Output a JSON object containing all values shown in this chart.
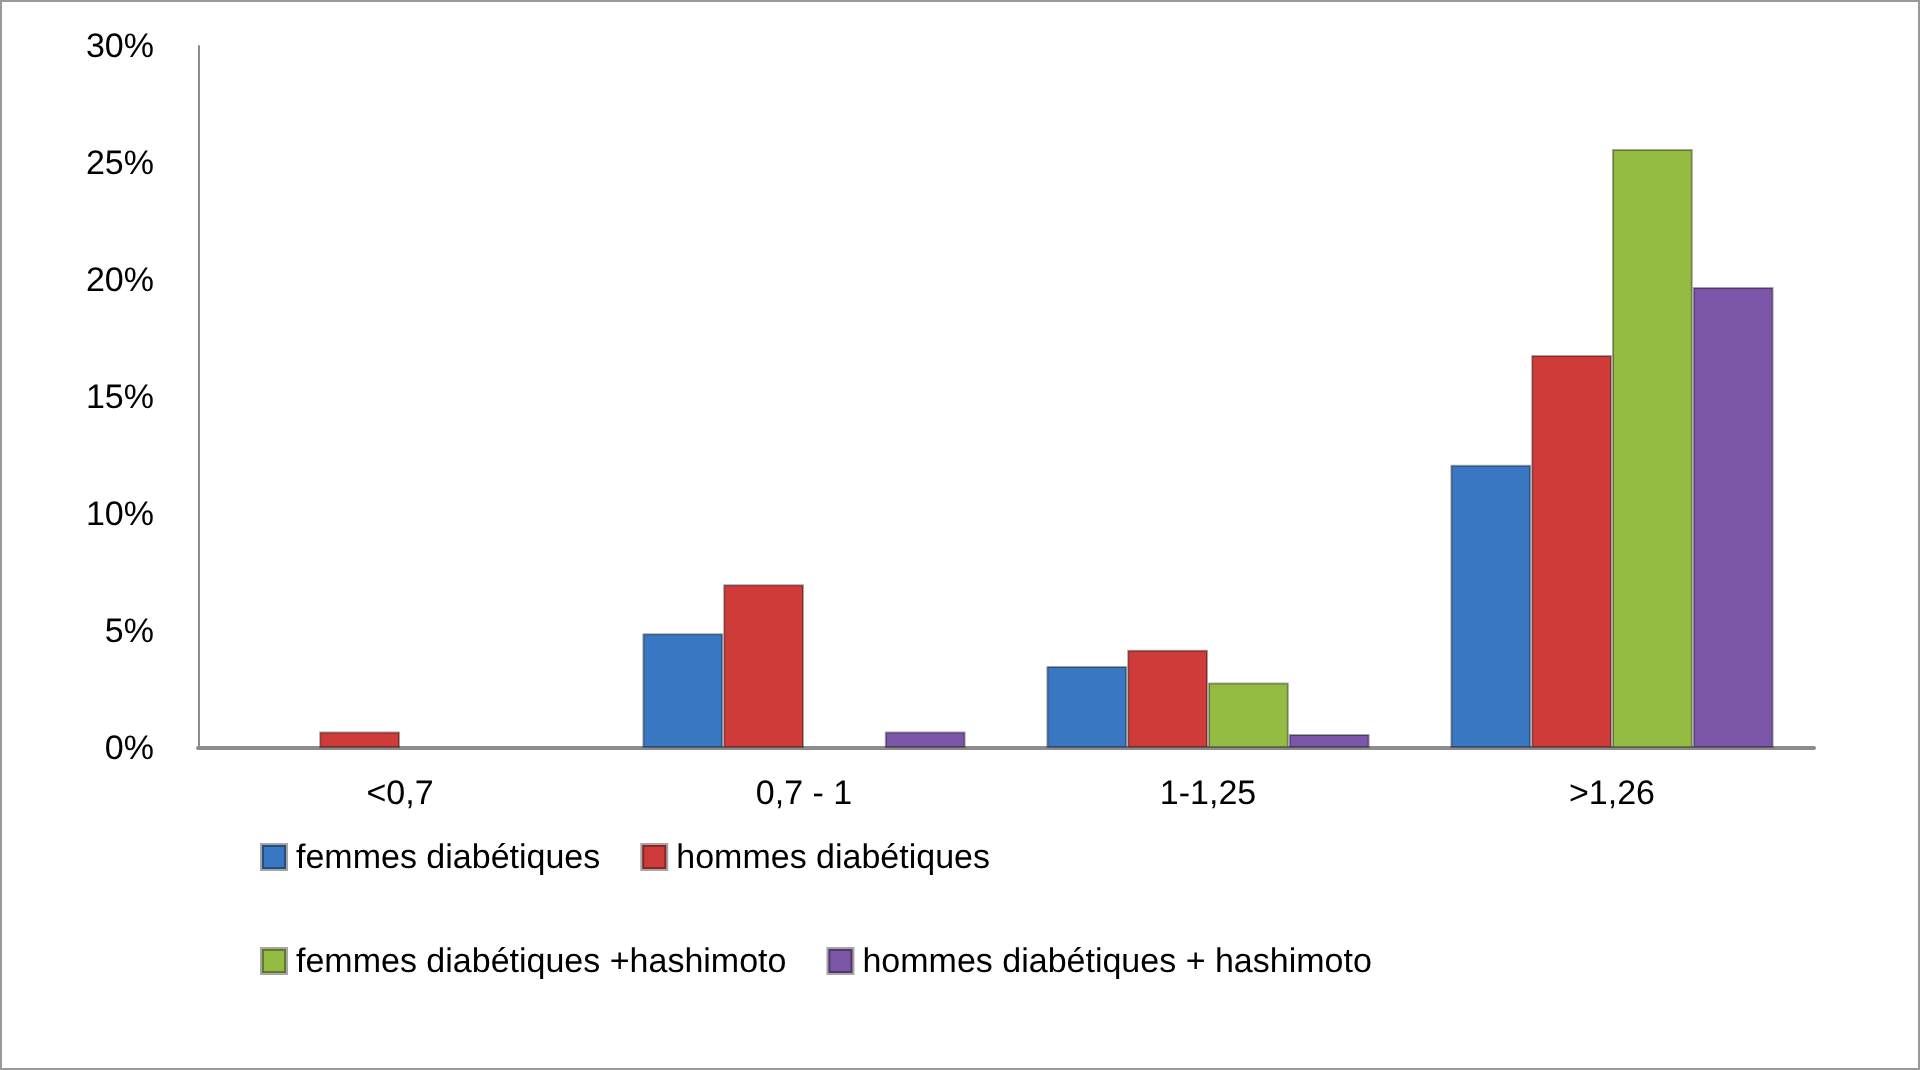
{
  "chart_data": {
    "type": "bar",
    "categories": [
      "<0,7",
      "0,7 - 1",
      "1-1,25",
      ">1,26"
    ],
    "series": [
      {
        "name": "femmes diabétiques",
        "color": "#3a77c2",
        "values": [
          null,
          4.9,
          3.5,
          12.1
        ]
      },
      {
        "name": "hommes diabétiques",
        "color": "#cf3b38",
        "values": [
          0.7,
          7.0,
          4.2,
          16.8
        ]
      },
      {
        "name": "femmes diabétiques +hashimoto",
        "color": "#94bc43",
        "values": [
          null,
          null,
          2.8,
          25.6
        ]
      },
      {
        "name": "hommes diabétiques + hashimoto",
        "color": "#7c56a8",
        "values": [
          null,
          0.7,
          0.6,
          19.7
        ]
      }
    ],
    "ylim": [
      0,
      30
    ],
    "yticks": [
      {
        "value": 0,
        "label": "0%"
      },
      {
        "value": 5,
        "label": "5%"
      },
      {
        "value": 10,
        "label": "10%"
      },
      {
        "value": 15,
        "label": "15%"
      },
      {
        "value": 20,
        "label": "20%"
      },
      {
        "value": 25,
        "label": "25%"
      },
      {
        "value": 30,
        "label": "30%"
      }
    ],
    "grid": false,
    "legend": "bottom"
  }
}
